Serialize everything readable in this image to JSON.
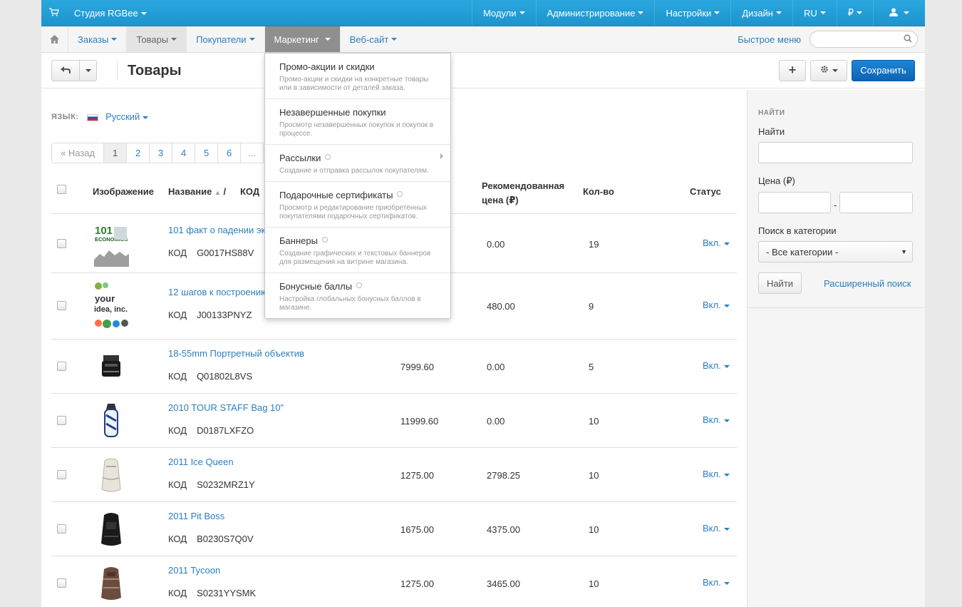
{
  "topbar": {
    "brand": "Студия RGBee",
    "items": [
      "Модули",
      "Администрирование",
      "Настройки",
      "Дизайн",
      "RU",
      "₽",
      ""
    ]
  },
  "navbar": {
    "items": [
      "Заказы",
      "Товары",
      "Покупатели",
      "Маркетинг",
      "Веб-сайт"
    ],
    "quick_menu": "Быстрое меню",
    "search_placeholder": ""
  },
  "page": {
    "title": "Товары",
    "save_label": "Сохранить"
  },
  "language": {
    "label": "ЯЗЫК:",
    "value": "Русский"
  },
  "pager": {
    "prev": "« Назад",
    "pages": [
      "1",
      "2",
      "3",
      "4",
      "5",
      "6"
    ],
    "dots": "...",
    "current": "1"
  },
  "table": {
    "headers": {
      "image": "Изображение",
      "name": "Название",
      "sep": "/",
      "code": "КОД",
      "rec_price_1": "Рекомендованная",
      "rec_price_2": "цена (₽)",
      "qty": "Кол-во",
      "status": "Статус"
    },
    "code_label": "КОД",
    "rows": [
      {
        "name": "101 факт о падении эк",
        "code": "G0017HS88V",
        "price": "",
        "rec": "0.00",
        "qty": "19",
        "status": "Вкл."
      },
      {
        "name": "12 шагов к построению",
        "code": "J00133PNYZ",
        "price": "",
        "rec": "480.00",
        "qty": "9",
        "status": "Вкл."
      },
      {
        "name": "18-55mm Портретный объектив",
        "code": "Q01802L8VS",
        "price": "7999.60",
        "rec": "0.00",
        "qty": "5",
        "status": "Вкл."
      },
      {
        "name": "2010 TOUR STAFF Bag 10\"",
        "code": "D0187LXFZO",
        "price": "11999.60",
        "rec": "0.00",
        "qty": "10",
        "status": "Вкл."
      },
      {
        "name": "2011 Ice Queen",
        "code": "S0232MRZ1Y",
        "price": "1275.00",
        "rec": "2798.25",
        "qty": "10",
        "status": "Вкл."
      },
      {
        "name": "2011 Pit Boss",
        "code": "B0230S7Q0V",
        "price": "1675.00",
        "rec": "4375.00",
        "qty": "10",
        "status": "Вкл."
      },
      {
        "name": "2011 Tycoon",
        "code": "S0231YYSMK",
        "price": "1275.00",
        "rec": "3465.00",
        "qty": "10",
        "status": "Вкл."
      }
    ]
  },
  "sidebar": {
    "header": "НАЙТИ",
    "find_label": "Найти",
    "price_label": "Цена (₽)",
    "price_sep": "-",
    "category_label": "Поиск в категории",
    "category_value": "- Все категории -",
    "find_button": "Найти",
    "advanced": "Расширенный поиск"
  },
  "dropdown": {
    "items": [
      {
        "title": "Промо-акции и скидки",
        "desc": "Промо-акции и скидки на конкретные товары или в зависимости от деталей заказа."
      },
      {
        "title": "Незавершенные покупки",
        "desc": "Просмотр незавершенных покупок и покупок в процессе."
      },
      {
        "title": "Рассылки",
        "desc": "Создание и отправка рассылок покупателям."
      },
      {
        "title": "Подарочные сертификаты",
        "desc": "Просмотр и редактирование приобретенных покупателями подарочных сертификатов."
      },
      {
        "title": "Баннеры",
        "desc": "Создание графических и текстовых баннеров для размещения на витрине магазина."
      },
      {
        "title": "Бонусные баллы",
        "desc": "Настройка глобальных бонусных баллов в магазине."
      }
    ]
  },
  "colors": {
    "topbar": "#1e94cc",
    "link": "#2a7fbf",
    "save": "#0d63b3"
  }
}
